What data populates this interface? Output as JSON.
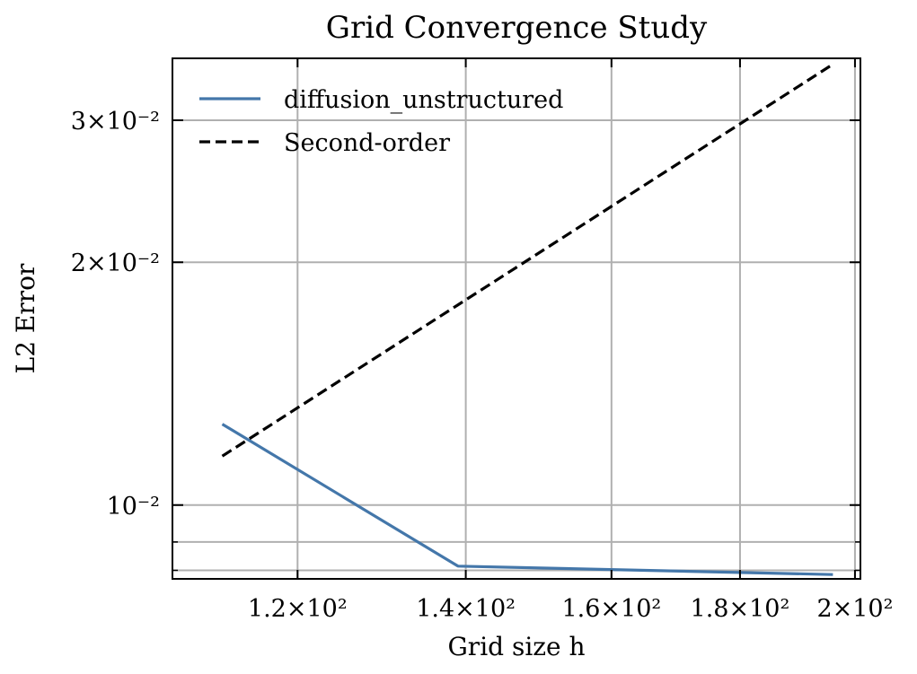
{
  "chart_data": {
    "type": "line",
    "title": "Grid Convergence Study",
    "xlabel": "Grid size h",
    "ylabel": "L2 Error",
    "xscale": "log",
    "yscale": "log",
    "xlim": [
      107,
      201
    ],
    "ylim": [
      0.0081,
      0.0358
    ],
    "grid": true,
    "legend_position": "top-left",
    "x_ticks": [
      {
        "value": 120,
        "label": "1.2×10²"
      },
      {
        "value": 140,
        "label": "1.4×10²"
      },
      {
        "value": 160,
        "label": "1.6×10²"
      },
      {
        "value": 180,
        "label": "1.8×10²"
      },
      {
        "value": 200,
        "label": "2×10²"
      }
    ],
    "y_major_ticks": [
      {
        "value": 0.01,
        "label": "10⁻²"
      },
      {
        "value": 0.02,
        "label": "2×10⁻²"
      },
      {
        "value": 0.03,
        "label": "3×10⁻²"
      }
    ],
    "y_minor_ticks": [
      0.009,
      0.0083
    ],
    "series": [
      {
        "name": "diffusion_unstructured",
        "color": "#4477aa",
        "style": "solid",
        "x": [
          112,
          139,
          196
        ],
        "y": [
          0.0126,
          0.0084,
          0.0082
        ]
      },
      {
        "name": "Second-order",
        "color": "#000000",
        "style": "dashed",
        "x": [
          112,
          196
        ],
        "y": [
          0.0115,
          0.0352
        ]
      }
    ]
  }
}
